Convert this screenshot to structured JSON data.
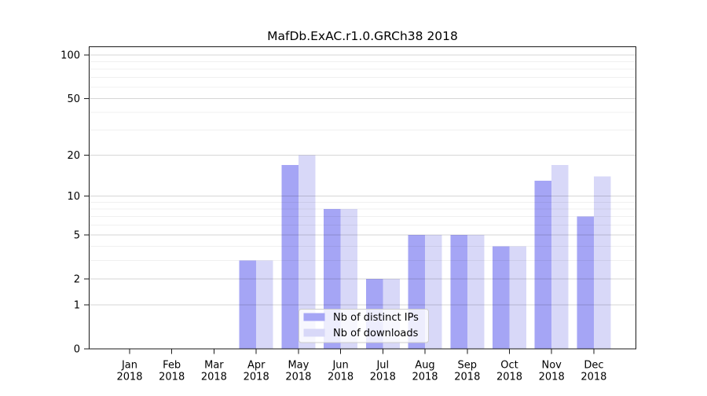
{
  "chart_data": {
    "type": "bar",
    "title": "MafDb.ExAC.r1.0.GRCh38 2018",
    "x_categories_line1": [
      "Jan",
      "Feb",
      "Mar",
      "Apr",
      "May",
      "Jun",
      "Jul",
      "Aug",
      "Sep",
      "Oct",
      "Nov",
      "Dec"
    ],
    "x_categories_line2": "2018",
    "series": [
      {
        "name": "Nb of distinct IPs",
        "color": "#a5a5f5",
        "values": [
          0,
          0,
          0,
          3,
          17,
          8,
          2,
          5,
          5,
          4,
          13,
          7
        ]
      },
      {
        "name": "Nb of downloads",
        "color": "#d8d8f8",
        "values": [
          0,
          0,
          0,
          3,
          20,
          8,
          2,
          5,
          5,
          4,
          17,
          14
        ]
      }
    ],
    "y_scale": "log1p (y position proportional to log10(value+1))",
    "y_major_ticks": [
      0,
      1,
      2,
      5,
      10,
      20,
      50,
      100
    ],
    "y_minor_gridlines": [
      3,
      4,
      6,
      7,
      8,
      9,
      30,
      40,
      60,
      70,
      80,
      90
    ],
    "ylim": [
      0,
      115
    ],
    "grid": true,
    "legend_position": "inside lower center"
  },
  "colors": {
    "bar_distinct_ips": "#a5a5f5",
    "bar_downloads": "#d8d8f8",
    "spine": "#1a1a1a",
    "tick": "#1a1a1a",
    "grid_major": "rgba(0,0,0,0.16)",
    "grid_minor": "rgba(0,0,0,0.06)",
    "legend_bg": "rgba(255,255,255,0.8)",
    "legend_border": "#cccccc",
    "text": "#000000",
    "background": "#ffffff"
  }
}
